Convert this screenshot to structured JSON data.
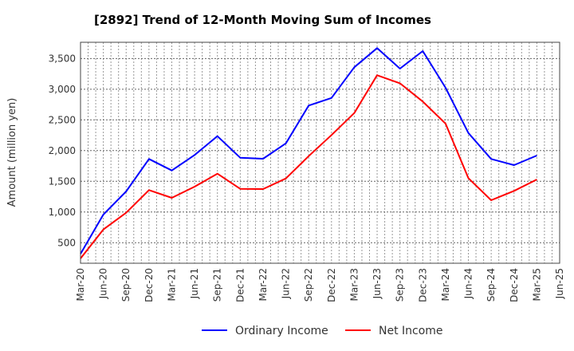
{
  "chart_data": {
    "type": "line",
    "title": "[2892]  Trend of 12-Month Moving Sum of Incomes",
    "xlabel": "",
    "ylabel": "Amount (million yen)",
    "ylim": [
      166,
      3764
    ],
    "yticks": [
      500,
      1000,
      1500,
      2000,
      2500,
      3000,
      3500
    ],
    "ytick_labels": [
      "500",
      "1,000",
      "1,500",
      "2,000",
      "2,500",
      "3,000",
      "3,500"
    ],
    "x_tick_labels": [
      "Mar-20",
      "Jun-20",
      "Sep-20",
      "Dec-20",
      "Mar-21",
      "Jun-21",
      "Sep-21",
      "Dec-21",
      "Mar-22",
      "Jun-22",
      "Sep-22",
      "Dec-22",
      "Mar-23",
      "Jun-23",
      "Sep-23",
      "Dec-23",
      "Mar-24",
      "Jun-24",
      "Sep-24",
      "Dec-24",
      "Mar-25",
      "Jun-25"
    ],
    "grid": true,
    "legend_position": "bottom-center",
    "series": [
      {
        "name": "Ordinary Income",
        "color": "#0000ff",
        "values": [
          318,
          958,
          1335,
          1864,
          1677,
          1929,
          2235,
          1885,
          1868,
          2118,
          2734,
          2858,
          3357,
          3669,
          3335,
          3621,
          3023,
          2287,
          1864,
          1764,
          1919
        ]
      },
      {
        "name": "Net Income",
        "color": "#ff0000",
        "values": [
          244,
          716,
          988,
          1357,
          1231,
          1413,
          1625,
          1378,
          1374,
          1547,
          1910,
          2253,
          2612,
          3227,
          3097,
          2799,
          2439,
          1552,
          1192,
          1344,
          1530
        ]
      }
    ]
  }
}
